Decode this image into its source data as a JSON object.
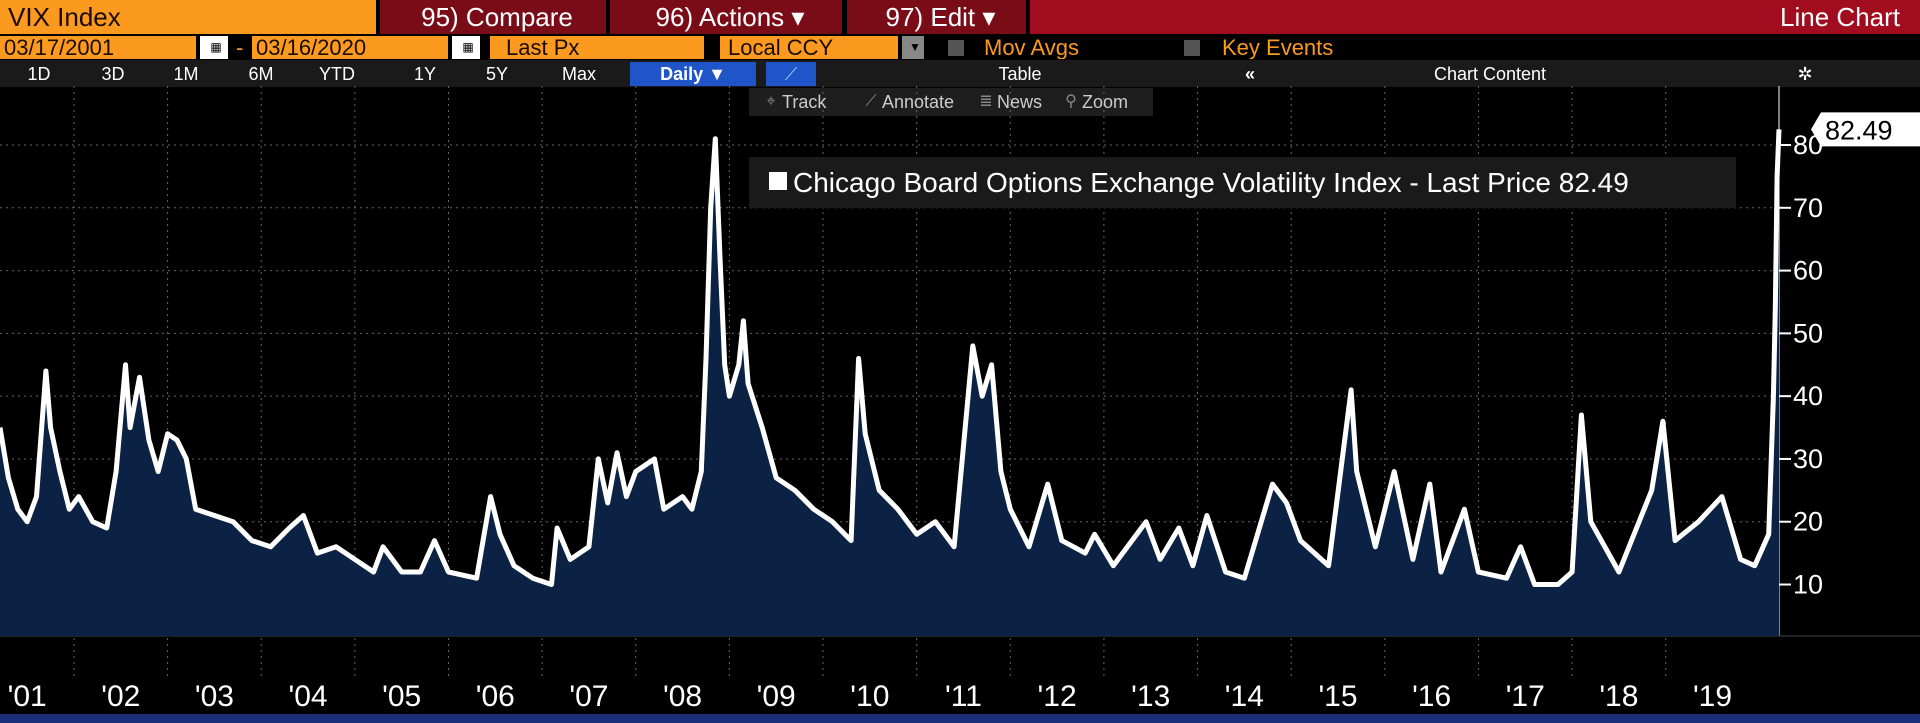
{
  "toolbar": {
    "security": "VIX Index",
    "compare": "95) Compare",
    "actions": "96) Actions ▾",
    "edit": "97) Edit ▾",
    "chart_type": "Line Chart",
    "start_date": "03/17/2001",
    "date_sep": "-",
    "end_date": "03/16/2020",
    "field": "Last Px",
    "currency": "Local CCY",
    "mov_avgs": "Mov Avgs",
    "key_events": "Key Events",
    "periods": [
      "1D",
      "3D",
      "1M",
      "6M",
      "YTD",
      "1Y",
      "5Y",
      "Max"
    ],
    "frequency": "Daily ▼",
    "table": "Table",
    "collapse": "«",
    "chart_content": "Chart Content"
  },
  "chart_tools": [
    "Track",
    "Annotate",
    "News",
    "Zoom"
  ],
  "chart_data": {
    "type": "line",
    "legend": "top-right",
    "grid": true,
    "last_price_label": "82.49",
    "series": [
      {
        "name": "Chicago Board Options Exchange Volatility Index - Last Price 82.49",
        "color": "#ffffff",
        "fill": "#0b2244",
        "values": [
          35,
          27,
          22,
          20,
          24,
          44,
          35,
          28,
          22,
          24,
          20,
          19,
          28,
          45,
          35,
          43,
          33,
          28,
          34,
          33,
          30,
          22,
          21,
          20,
          17,
          16,
          19,
          21,
          15,
          16,
          14,
          12,
          16,
          12,
          12,
          17,
          12,
          11,
          24,
          18,
          13,
          11,
          10,
          19,
          14,
          16,
          30,
          23,
          31,
          24,
          28,
          30,
          22,
          24,
          22,
          28,
          46,
          70,
          81,
          62,
          45,
          40,
          45,
          52,
          42,
          35,
          27,
          25,
          22,
          20,
          17,
          46,
          34,
          25,
          22,
          18,
          20,
          16,
          48,
          40,
          45,
          28,
          22,
          16,
          26,
          17,
          15,
          18,
          13,
          17,
          20,
          14,
          19,
          13,
          21,
          12,
          11,
          26,
          23,
          17,
          13,
          41,
          28,
          16,
          28,
          14,
          26,
          12,
          22,
          12,
          11,
          16,
          10,
          10,
          12,
          37,
          20,
          12,
          25,
          36,
          17,
          20,
          24,
          14,
          13,
          18,
          40,
          54,
          75,
          82.49
        ]
      }
    ],
    "x": [
      2001.21,
      2001.3,
      2001.4,
      2001.5,
      2001.6,
      2001.7,
      2001.75,
      2001.85,
      2001.95,
      2002.05,
      2002.2,
      2002.35,
      2002.45,
      2002.55,
      2002.6,
      2002.7,
      2002.8,
      2002.9,
      2003.0,
      2003.1,
      2003.2,
      2003.3,
      2003.5,
      2003.7,
      2003.9,
      2004.1,
      2004.3,
      2004.45,
      2004.6,
      2004.8,
      2005.0,
      2005.2,
      2005.3,
      2005.5,
      2005.7,
      2005.85,
      2006.0,
      2006.3,
      2006.45,
      2006.55,
      2006.7,
      2006.9,
      2007.1,
      2007.16,
      2007.3,
      2007.5,
      2007.6,
      2007.7,
      2007.8,
      2007.9,
      2008.0,
      2008.2,
      2008.3,
      2008.5,
      2008.6,
      2008.7,
      2008.75,
      2008.8,
      2008.85,
      2008.9,
      2008.95,
      2009.0,
      2009.1,
      2009.15,
      2009.2,
      2009.35,
      2009.5,
      2009.7,
      2009.9,
      2010.1,
      2010.3,
      2010.38,
      2010.45,
      2010.6,
      2010.8,
      2011.0,
      2011.2,
      2011.4,
      2011.6,
      2011.7,
      2011.8,
      2011.9,
      2012.0,
      2012.2,
      2012.4,
      2012.55,
      2012.8,
      2012.9,
      2013.1,
      2013.3,
      2013.45,
      2013.6,
      2013.8,
      2013.95,
      2014.1,
      2014.3,
      2014.5,
      2014.8,
      2014.95,
      2015.1,
      2015.4,
      2015.64,
      2015.7,
      2015.9,
      2016.1,
      2016.3,
      2016.48,
      2016.6,
      2016.85,
      2017.0,
      2017.3,
      2017.45,
      2017.6,
      2017.85,
      2018.0,
      2018.1,
      2018.2,
      2018.5,
      2018.85,
      2018.97,
      2019.1,
      2019.35,
      2019.6,
      2019.8,
      2019.95,
      2020.1,
      2020.15,
      2020.17,
      2020.19,
      2020.21
    ],
    "xlim": [
      2001.21,
      2020.21
    ],
    "ylim": [
      1.8,
      89.4
    ],
    "yticks": [
      10,
      20,
      30,
      40,
      50,
      60,
      70,
      80
    ],
    "xticks": [
      {
        "value": 2001.5,
        "label": "'01"
      },
      {
        "value": 2002.5,
        "label": "'02"
      },
      {
        "value": 2003.5,
        "label": "'03"
      },
      {
        "value": 2004.5,
        "label": "'04"
      },
      {
        "value": 2005.5,
        "label": "'05"
      },
      {
        "value": 2006.5,
        "label": "'06"
      },
      {
        "value": 2007.5,
        "label": "'07"
      },
      {
        "value": 2008.5,
        "label": "'08"
      },
      {
        "value": 2009.5,
        "label": "'09"
      },
      {
        "value": 2010.5,
        "label": "'10"
      },
      {
        "value": 2011.5,
        "label": "'11"
      },
      {
        "value": 2012.5,
        "label": "'12"
      },
      {
        "value": 2013.5,
        "label": "'13"
      },
      {
        "value": 2014.5,
        "label": "'14"
      },
      {
        "value": 2015.5,
        "label": "'15"
      },
      {
        "value": 2016.5,
        "label": "'16"
      },
      {
        "value": 2017.5,
        "label": "'17"
      },
      {
        "value": 2018.5,
        "label": "'18"
      },
      {
        "value": 2019.5,
        "label": "'19"
      }
    ]
  }
}
